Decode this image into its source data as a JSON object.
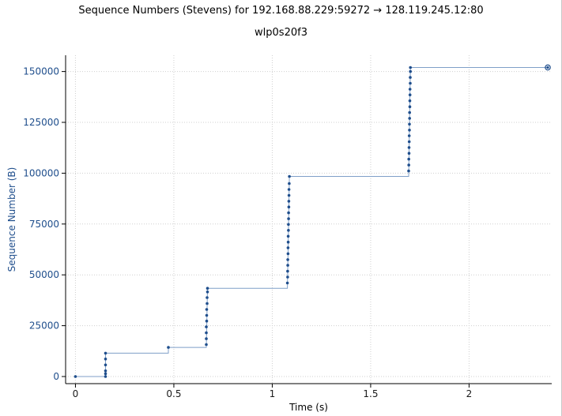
{
  "window": {
    "title": "Sequence Numbers (Stevens) for 192.168.88.229:59272 → 128.119.245.12:80",
    "subtitle": "wlp0s20f3"
  },
  "colors": {
    "series": "#1f4e8c",
    "line": "#7f9fc8",
    "grid": "#cfcfcf",
    "ylabel": "#1f4e8c"
  },
  "chart_data": {
    "type": "scatter",
    "title": "Sequence Numbers (Stevens) for 192.168.88.229:59272 → 128.119.245.12:80",
    "subtitle": "wlp0s20f3",
    "xlabel": "Time (s)",
    "ylabel": "Sequence Number (B)",
    "xlim": [
      -0.05,
      2.42
    ],
    "ylim": [
      -3500,
      158000
    ],
    "xticks": [
      0,
      0.5,
      1,
      1.5,
      2
    ],
    "xtick_labels": [
      "0",
      "0.5",
      "1",
      "1.5",
      "2"
    ],
    "yticks": [
      0,
      25000,
      50000,
      75000,
      100000,
      125000,
      150000
    ],
    "ytick_labels": [
      "0",
      "25000",
      "50000",
      "75000",
      "100000",
      "125000",
      "150000"
    ],
    "grid": true,
    "series": [
      {
        "points": [
          [
            0.0,
            0
          ],
          [
            0.153,
            0
          ],
          [
            0.153,
            1400
          ],
          [
            0.153,
            2800
          ],
          [
            0.153,
            5700
          ],
          [
            0.153,
            8600
          ],
          [
            0.153,
            11500
          ],
          [
            0.472,
            14300
          ],
          [
            0.665,
            15700
          ],
          [
            0.665,
            18600
          ],
          [
            0.665,
            21500
          ],
          [
            0.665,
            24400
          ],
          [
            0.667,
            27300
          ],
          [
            0.667,
            30100
          ],
          [
            0.667,
            33000
          ],
          [
            0.669,
            35900
          ],
          [
            0.669,
            38800
          ],
          [
            0.671,
            41600
          ],
          [
            0.671,
            43400
          ],
          [
            1.077,
            46000
          ],
          [
            1.078,
            48900
          ],
          [
            1.078,
            51800
          ],
          [
            1.079,
            54700
          ],
          [
            1.079,
            57500
          ],
          [
            1.08,
            60400
          ],
          [
            1.08,
            63300
          ],
          [
            1.081,
            66100
          ],
          [
            1.081,
            69000
          ],
          [
            1.082,
            71900
          ],
          [
            1.082,
            74800
          ],
          [
            1.083,
            77600
          ],
          [
            1.083,
            80500
          ],
          [
            1.084,
            83400
          ],
          [
            1.084,
            86200
          ],
          [
            1.085,
            89100
          ],
          [
            1.085,
            92000
          ],
          [
            1.086,
            94900
          ],
          [
            1.087,
            98400
          ],
          [
            1.693,
            101100
          ],
          [
            1.694,
            104000
          ],
          [
            1.694,
            106900
          ],
          [
            1.695,
            109800
          ],
          [
            1.695,
            112600
          ],
          [
            1.696,
            115500
          ],
          [
            1.696,
            118400
          ],
          [
            1.697,
            121200
          ],
          [
            1.697,
            124100
          ],
          [
            1.698,
            127000
          ],
          [
            1.698,
            129800
          ],
          [
            1.699,
            132700
          ],
          [
            1.699,
            135600
          ],
          [
            1.7,
            138500
          ],
          [
            1.7,
            141300
          ],
          [
            1.701,
            144200
          ],
          [
            1.701,
            147100
          ],
          [
            1.702,
            150000
          ],
          [
            1.702,
            152000
          ]
        ],
        "step_line": [
          [
            0.0,
            0
          ],
          [
            0.153,
            0
          ],
          [
            0.153,
            11500
          ],
          [
            0.472,
            11500
          ],
          [
            0.472,
            14300
          ],
          [
            0.665,
            14300
          ],
          [
            0.671,
            43400
          ],
          [
            1.077,
            43400
          ],
          [
            1.087,
            98400
          ],
          [
            1.693,
            98400
          ],
          [
            1.702,
            152000
          ],
          [
            2.4,
            152000
          ]
        ],
        "end_marker": [
          2.4,
          152000
        ]
      }
    ]
  }
}
